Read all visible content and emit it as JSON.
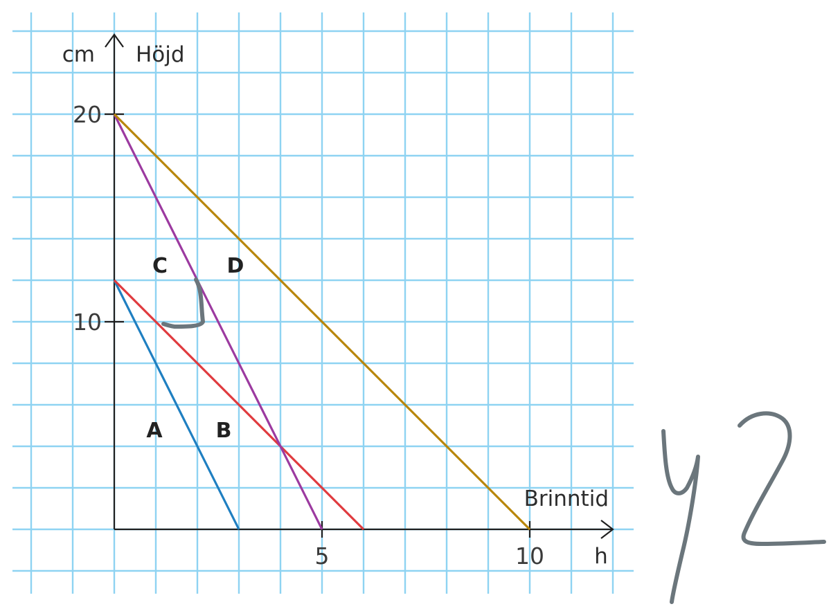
{
  "chart_data": {
    "type": "line",
    "x_unit": "h",
    "x_label": "Brinntid",
    "y_unit": "cm",
    "y_label": "Höjd",
    "xlim": [
      0,
      12
    ],
    "ylim": [
      0,
      23
    ],
    "x_ticks": [
      5,
      10
    ],
    "y_ticks": [
      10,
      20
    ],
    "grid": true,
    "series": [
      {
        "name": "A",
        "color": "#1f7fc1",
        "points": [
          [
            0,
            12
          ],
          [
            3,
            0
          ]
        ]
      },
      {
        "name": "B",
        "color": "#e03a3e",
        "points": [
          [
            0,
            12
          ],
          [
            6,
            0
          ]
        ]
      },
      {
        "name": "C",
        "color": "#9c3aa0",
        "points": [
          [
            0,
            20
          ],
          [
            5,
            0
          ]
        ]
      },
      {
        "name": "D",
        "color": "#b8860b",
        "points": [
          [
            0,
            20
          ],
          [
            10,
            0
          ]
        ]
      }
    ]
  },
  "handwriting": {
    "color": "#6b767c",
    "marks": [
      "corner-check-mark",
      "y2-scribble"
    ]
  }
}
